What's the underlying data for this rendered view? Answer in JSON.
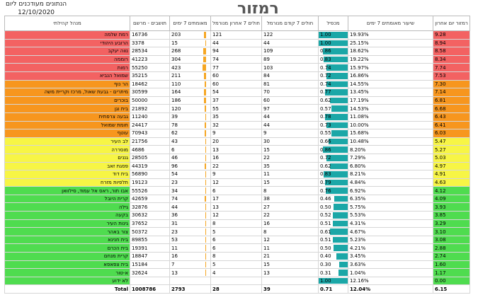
{
  "header": {
    "title": "רמזור",
    "updated_label": "הנתונים מעודכנים ליום",
    "updated_date": "12/10/2020"
  },
  "table": {
    "columns": [
      "רמזור יום אחרון",
      "שיעור מאומתים 7 ימים",
      "מכפיל",
      "חולים 7 קודם מנורמל",
      "חולים 7 אחרון מנורמל",
      "מאומתים 7 ימים",
      "תושבים - מרשם",
      "מנהל קהילתי"
    ],
    "level_colors": {
      "red": "#f36262",
      "orange": "#f7961e",
      "yellow": "#f7f545",
      "green": "#4fdc4f"
    },
    "bar_colors": {
      "multiplier": "#1ba7a7",
      "cases": "#f5a623"
    },
    "rows": [
      [
        "9.28",
        "19.93%",
        "1.00",
        "122",
        "121",
        "203",
        "16736",
        "רמת שלמה"
      ],
      [
        "8.94",
        "25.15%",
        "1.00",
        "44",
        "44",
        "15",
        "3378",
        "הרובע היהודי"
      ],
      [
        "8.58",
        "18.62%",
        "0.86",
        "109",
        "94",
        "268",
        "28534",
        "נווה יעקב"
      ],
      [
        "8.34",
        "19.22%",
        "0.83",
        "89",
        "74",
        "304",
        "41223",
        "רוממה"
      ],
      [
        "7.74",
        "15.97%",
        "0.74",
        "103",
        "77",
        "423",
        "55250",
        "רמות"
      ],
      [
        "7.53",
        "16.86%",
        "0.72",
        "84",
        "60",
        "211",
        "35215",
        "שמואל הנביא"
      ],
      [
        "7.30",
        "14.55%",
        "0.74",
        "81",
        "60",
        "110",
        "18462",
        "הר נוף"
      ],
      [
        "7.14",
        "13.45%",
        "0.77",
        "70",
        "54",
        "164",
        "30599",
        "מיתרים - גבעת שאול, מרכז וקריית משה"
      ],
      [
        "6.81",
        "17.19%",
        "0.62",
        "60",
        "37",
        "186",
        "50000",
        "בוכרים"
      ],
      [
        "6.68",
        "14.53%",
        "0.57",
        "97",
        "55",
        "120",
        "21892",
        "בית וגן"
      ],
      [
        "6.43",
        "11.08%",
        "0.78",
        "44",
        "35",
        "39",
        "11240",
        "גבעה צרפתית"
      ],
      [
        "6.41",
        "10.00%",
        "0.73",
        "44",
        "32",
        "78",
        "24417",
        "חומת שמואל"
      ],
      [
        "6.03",
        "15.68%",
        "0.55",
        "9",
        "9",
        "62",
        "70943",
        "עוטף"
      ],
      [
        "5.47",
        "10.48%",
        "0.66",
        "30",
        "20",
        "43",
        "21756",
        "לב העיר"
      ],
      [
        "5.27",
        "8.20%",
        "0.86",
        "15",
        "13",
        "6",
        "4686",
        "מוסררה"
      ],
      [
        "5.03",
        "7.29%",
        "0.72",
        "22",
        "16",
        "46",
        "28505",
        "גננים"
      ],
      [
        "4.97",
        "6.80%",
        "0.62",
        "35",
        "22",
        "96",
        "44319",
        "פסגת זאב"
      ],
      [
        "4.91",
        "8.21%",
        "0.83",
        "11",
        "9",
        "54",
        "56890",
        "בית דוד"
      ],
      [
        "4.63",
        "4.84%",
        "0.79",
        "15",
        "12",
        "23",
        "19123",
        "תלפיות מזרח"
      ],
      [
        "4.12",
        "6.92%",
        "0.76",
        "8",
        "6",
        "34",
        "55526",
        "אבו תור, ראס אל עמוד, סילוואן"
      ],
      [
        "4.09",
        "6.35%",
        "0.46",
        "38",
        "17",
        "74",
        "42659",
        "קרית היובל"
      ],
      [
        "3.93",
        "5.75%",
        "0.50",
        "27",
        "13",
        "44",
        "32876",
        "גילה"
      ],
      [
        "3.85",
        "5.53%",
        "0.52",
        "22",
        "12",
        "36",
        "30632",
        "בקעה"
      ],
      [
        "3.29",
        "4.31%",
        "0.51",
        "16",
        "8",
        "31",
        "37652",
        "גינות העיר"
      ],
      [
        "3.10",
        "4.67%",
        "0.61",
        "8",
        "5",
        "23",
        "50372",
        "צור באהר"
      ],
      [
        "3.08",
        "5.23%",
        "0.51",
        "12",
        "6",
        "53",
        "89855",
        "בית חנינא"
      ],
      [
        "2.88",
        "4.21%",
        "0.50",
        "11",
        "6",
        "11",
        "19391",
        "בית הכרם"
      ],
      [
        "2.74",
        "3.45%",
        "0.40",
        "21",
        "8",
        "16",
        "18847",
        "קרית מנחם"
      ],
      [
        "1.60",
        "3.63%",
        "0.30",
        "15",
        "5",
        "7",
        "15184",
        "בית צפאפא"
      ],
      [
        "1.17",
        "1.04%",
        "0.31",
        "13",
        "4",
        "13",
        "32624",
        "א-טור"
      ],
      [
        "0.00",
        "12.16%",
        "1.00",
        null,
        null,
        null,
        null,
        "לא ידוע"
      ]
    ],
    "row_levels": [
      "red",
      "red",
      "red",
      "red",
      "red",
      "red",
      "orange",
      "orange",
      "orange",
      "orange",
      "orange",
      "orange",
      "orange",
      "yellow",
      "yellow",
      "yellow",
      "yellow",
      "yellow",
      "yellow",
      "green",
      "green",
      "green",
      "green",
      "green",
      "green",
      "green",
      "green",
      "green",
      "green",
      "green",
      "green"
    ],
    "total": [
      "6.15",
      "12.04%",
      "0.71",
      "39",
      "28",
      "2793",
      "1008786",
      "Total"
    ]
  }
}
